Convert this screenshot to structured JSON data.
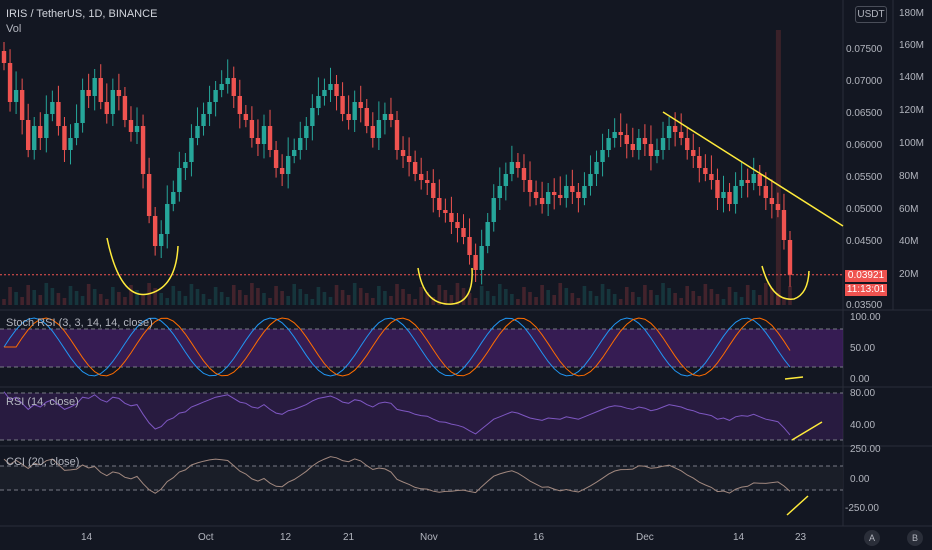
{
  "header": {
    "symbol_title": "IRIS / TetherUS, 1D, BINANCE",
    "vol_label": "Vol",
    "currency_button": "USDT"
  },
  "price_axis": {
    "labels": [
      "0.07500",
      "0.07000",
      "0.06500",
      "0.06000",
      "0.05500",
      "0.05000",
      "0.04500",
      "0.03500"
    ],
    "current_price": "0.03921",
    "countdown": "11:13:01"
  },
  "volume_axis": {
    "labels": [
      "180M",
      "160M",
      "140M",
      "120M",
      "100M",
      "80M",
      "60M",
      "40M",
      "20M"
    ]
  },
  "stoch_rsi": {
    "title": "Stoch RSI (3, 3, 14, 14, close)",
    "labels": [
      "100.00",
      "50.00",
      "0.00"
    ]
  },
  "rsi": {
    "title": "RSI (14, close)",
    "labels": [
      "80.00",
      "40.00"
    ]
  },
  "cci": {
    "title": "CCI (20, close)",
    "labels": [
      "250.00",
      "0.00",
      "-250.00"
    ]
  },
  "time_axis": {
    "labels": [
      "14",
      "Oct",
      "12",
      "21",
      "Nov",
      "16",
      "Dec",
      "14",
      "23"
    ]
  },
  "footer": {
    "auto_button": "A",
    "b_button": "B"
  },
  "colors": {
    "up": "#26a69a",
    "down": "#ef5350",
    "annotation": "#ffeb3b",
    "background": "#131722"
  },
  "chart_data": {
    "type": "candlestick",
    "closes": [
      0.0745,
      0.068,
      0.07,
      0.065,
      0.06,
      0.064,
      0.062,
      0.066,
      0.068,
      0.064,
      0.06,
      0.062,
      0.0645,
      0.07,
      0.069,
      0.072,
      0.068,
      0.066,
      0.07,
      0.069,
      0.065,
      0.063,
      0.064,
      0.056,
      0.049,
      0.044,
      0.046,
      0.051,
      0.053,
      0.057,
      0.058,
      0.062,
      0.064,
      0.066,
      0.068,
      0.07,
      0.071,
      0.072,
      0.069,
      0.066,
      0.065,
      0.062,
      0.061,
      0.064,
      0.06,
      0.057,
      0.056,
      0.059,
      0.06,
      0.062,
      0.064,
      0.067,
      0.069,
      0.07,
      0.071,
      0.069,
      0.066,
      0.065,
      0.068,
      0.067,
      0.064,
      0.062,
      0.065,
      0.066,
      0.065,
      0.06,
      0.059,
      0.058,
      0.056,
      0.055,
      0.0545,
      0.052,
      0.05,
      0.0495,
      0.048,
      0.047,
      0.0455,
      0.0425,
      0.04,
      0.044,
      0.048,
      0.052,
      0.054,
      0.056,
      0.058,
      0.057,
      0.055,
      0.053,
      0.052,
      0.051,
      0.053,
      0.0525,
      0.052,
      0.054,
      0.053,
      0.052,
      0.054,
      0.056,
      0.058,
      0.06,
      0.062,
      0.063,
      0.0625,
      0.061,
      0.06,
      0.062,
      0.061,
      0.059,
      0.06,
      0.062,
      0.064,
      0.063,
      0.062,
      0.06,
      0.059,
      0.057,
      0.056,
      0.055,
      0.052,
      0.053,
      0.051,
      0.054,
      0.055,
      0.0545,
      0.056,
      0.054,
      0.052,
      0.051,
      0.05,
      0.045,
      0.0392
    ]
  }
}
